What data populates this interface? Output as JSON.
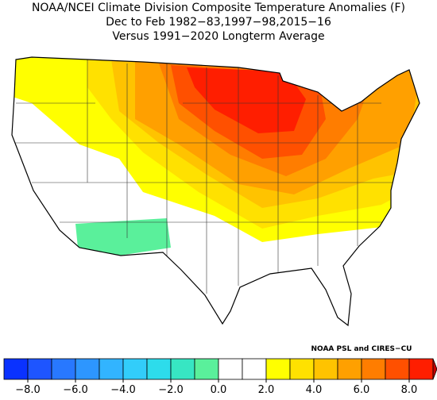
{
  "title": [
    "NOAA/NCEI Climate Division Composite Temperature Anomalies (F)",
    "Dec to Feb  1982−83,1997−98,2015−16",
    "Versus 1991−2020 Longterm Average"
  ],
  "credit": "NOAA PSL and CIRES−CU",
  "colorbar": {
    "lim": [
      -9,
      9
    ],
    "colors": [
      "#0a32ff",
      "#1e55ff",
      "#2878ff",
      "#2d96ff",
      "#32b4ff",
      "#32cdfa",
      "#2ddceb",
      "#37e6c3",
      "#5af09b",
      "#ffffff",
      "#ffffff",
      "#ffff00",
      "#ffe100",
      "#ffc300",
      "#ffa000",
      "#ff7d00",
      "#ff5000",
      "#ff1e00"
    ],
    "end_color": "#c80000",
    "ticks": [
      {
        "value": -8,
        "label": "−8.0"
      },
      {
        "value": -6,
        "label": "−6.0"
      },
      {
        "value": -4,
        "label": "−4.0"
      },
      {
        "value": -2,
        "label": "−2.0"
      },
      {
        "value": 0,
        "label": "0.0"
      },
      {
        "value": 2,
        "label": "2.0"
      },
      {
        "value": 4,
        "label": "4.0"
      },
      {
        "value": 6,
        "label": "6.0"
      },
      {
        "value": 8,
        "label": "8.0"
      }
    ]
  }
}
